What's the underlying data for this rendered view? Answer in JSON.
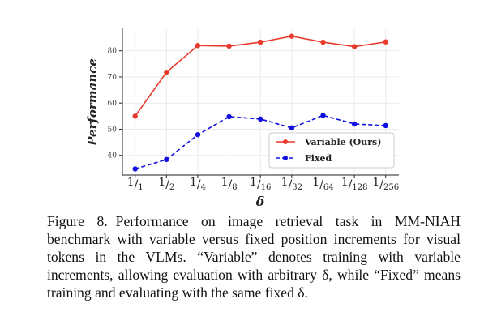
{
  "chart_data": {
    "type": "line",
    "title": "",
    "xlabel": "δ",
    "ylabel": "Performance",
    "categories": [
      "1/1",
      "1/2",
      "1/4",
      "1/8",
      "1/16",
      "1/32",
      "1/64",
      "1/128",
      "1/256"
    ],
    "category_parts": [
      [
        "1",
        "1"
      ],
      [
        "1",
        "2"
      ],
      [
        "1",
        "4"
      ],
      [
        "1",
        "8"
      ],
      [
        "1",
        "16"
      ],
      [
        "1",
        "32"
      ],
      [
        "1",
        "64"
      ],
      [
        "1",
        "128"
      ],
      [
        "1",
        "256"
      ]
    ],
    "yticks": [
      40,
      50,
      60,
      70,
      80
    ],
    "ylim": [
      32.5,
      88.5
    ],
    "grid": true,
    "legend": "bottom-right",
    "series": [
      {
        "name": "Variable (Ours)",
        "color": "#e8392b",
        "dash": false,
        "values": [
          55.0,
          71.8,
          82.0,
          81.8,
          83.3,
          85.6,
          83.3,
          81.6,
          83.4
        ]
      },
      {
        "name": "Fixed",
        "color": "#1010e0",
        "dash": true,
        "values": [
          34.8,
          38.4,
          47.9,
          54.8,
          53.9,
          50.5,
          55.3,
          52.0,
          51.4
        ]
      }
    ]
  },
  "caption": {
    "label": "Figure 8.",
    "text": "Performance on image retrieval task in MM-NIAH benchmark with variable versus fixed position increments for visual tokens in the VLMs. “Variable” denotes training with variable increments, allowing evaluation with arbitrary δ, while “Fixed” means training and evaluating with the same fixed δ."
  }
}
